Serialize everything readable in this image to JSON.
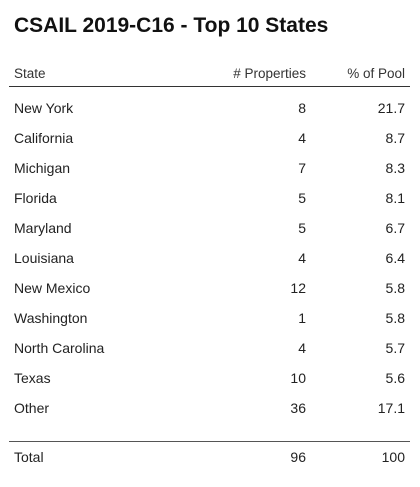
{
  "chart_data": {
    "type": "table",
    "title": "CSAIL 2019-C16 - Top 10 States",
    "columns": [
      "State",
      "# Properties",
      "% of Pool"
    ],
    "rows": [
      {
        "state": "New York",
        "properties": "8",
        "pool": "21.7"
      },
      {
        "state": "California",
        "properties": "4",
        "pool": "8.7"
      },
      {
        "state": "Michigan",
        "properties": "7",
        "pool": "8.3"
      },
      {
        "state": "Florida",
        "properties": "5",
        "pool": "8.1"
      },
      {
        "state": "Maryland",
        "properties": "5",
        "pool": "6.7"
      },
      {
        "state": "Louisiana",
        "properties": "4",
        "pool": "6.4"
      },
      {
        "state": "New Mexico",
        "properties": "12",
        "pool": "5.8"
      },
      {
        "state": "Washington",
        "properties": "1",
        "pool": "5.8"
      },
      {
        "state": "North Carolina",
        "properties": "4",
        "pool": "5.7"
      },
      {
        "state": "Texas",
        "properties": "10",
        "pool": "5.6"
      },
      {
        "state": "Other",
        "properties": "36",
        "pool": "17.1"
      }
    ],
    "total": {
      "label": "Total",
      "properties": "96",
      "pool": "100"
    }
  }
}
